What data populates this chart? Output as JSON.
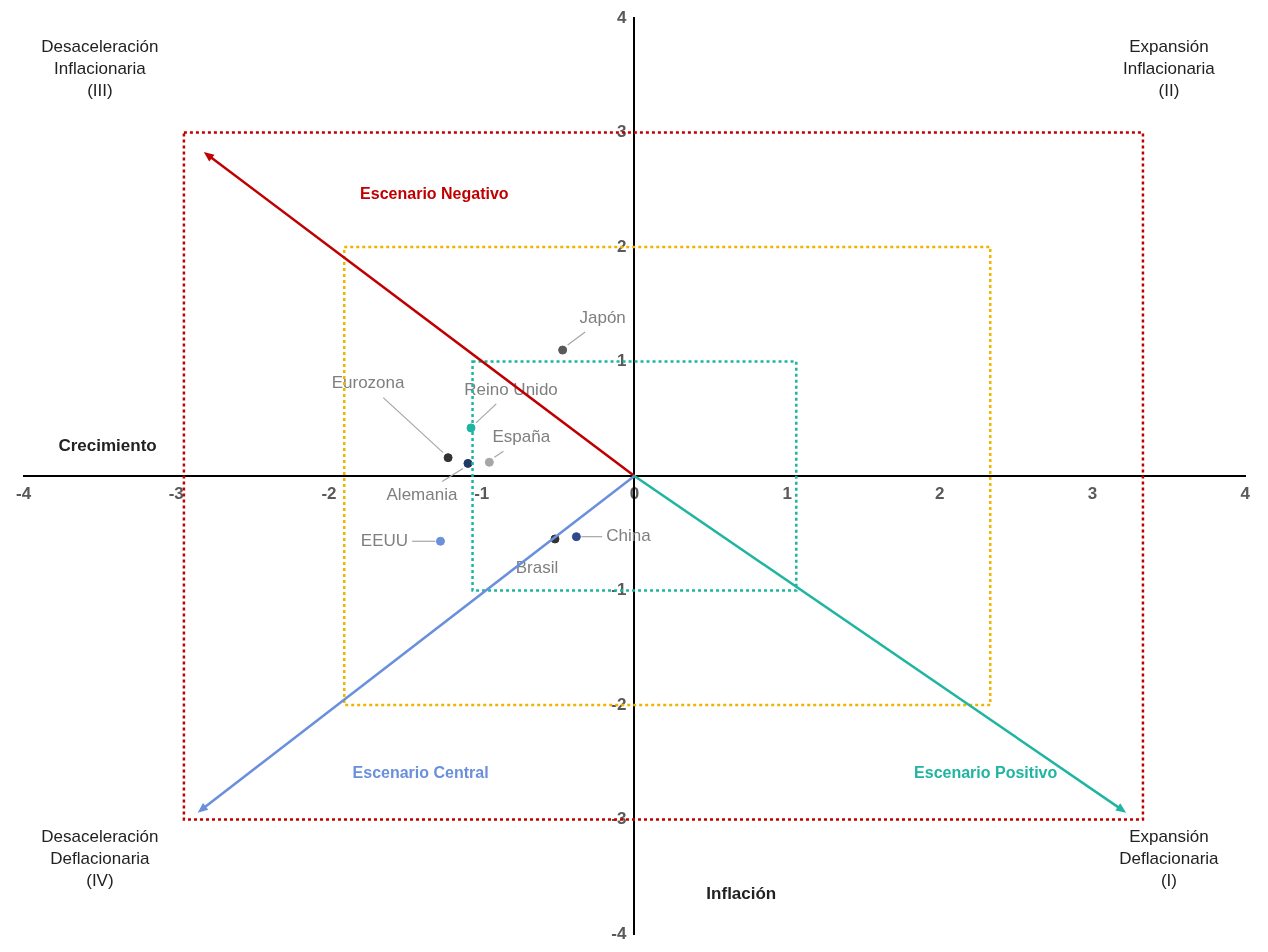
{
  "chart_data": {
    "type": "scatter",
    "xlabel": "Crecimiento",
    "ylabel": "Inflación",
    "xlim": [
      -4,
      4
    ],
    "ylim": [
      -4,
      4
    ],
    "xticks": [
      -4,
      -3,
      -2,
      -1,
      0,
      1,
      2,
      3,
      4
    ],
    "yticks": [
      -4,
      -3,
      -2,
      -1,
      {
        "value": 0,
        "label": null
      },
      1,
      2,
      3,
      4
    ],
    "grid": false,
    "legend": false,
    "series": [
      {
        "marker": "circle",
        "x": [
          -0.47,
          -1.07,
          -1.22,
          -1.09,
          -0.95,
          -1.27,
          -0.52,
          -0.38
        ],
        "values": [
          1.1,
          0.42,
          0.16,
          0.11,
          0.12,
          -0.57,
          -0.55,
          -0.53
        ],
        "colors": [
          "#595959",
          "#1fb5a0",
          "#333333",
          "#1f3864",
          "#a6a6a6",
          "#6a8fdc",
          "#333333",
          "#2f4a8c"
        ]
      }
    ],
    "annotations": [
      "Desaceleración\nInflacionaria\n(III)",
      "Expansión\nInflacionaria\n(II)",
      "Desaceleración\nDeflacionaria\n(IV)",
      "Expansión\nDeflacionaria\n(I)",
      "Escenario Negativo",
      "Escenario Central",
      "Escenario Positivo",
      {
        "text": "Japón",
        "x": -0.47,
        "y": 1.1
      },
      {
        "text": "Reino Unido",
        "x": -1.07,
        "y": 0.42
      },
      {
        "text": "Eurozona",
        "x": -1.22,
        "y": 0.16
      },
      {
        "text": "Alemania",
        "x": -1.09,
        "y": 0.11
      },
      {
        "text": "España",
        "x": -0.95,
        "y": 0.12
      },
      {
        "text": "EEUU",
        "x": -1.27,
        "y": -0.57
      },
      {
        "text": "Brasil",
        "x": -0.52,
        "y": -0.55
      },
      {
        "text": "China",
        "x": -0.38,
        "y": -0.53
      }
    ]
  }
}
